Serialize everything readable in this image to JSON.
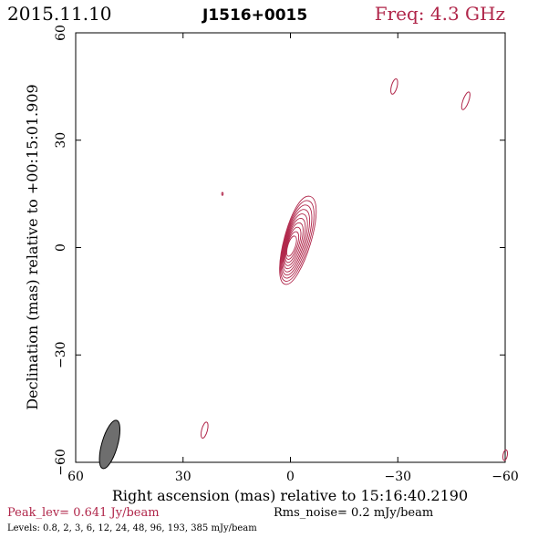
{
  "header": {
    "date": "2015.11.10",
    "source": "J1516+0015",
    "freq": "Freq: 4.3 GHz"
  },
  "footer": {
    "peak": "Peak_lev=  0.641 Jy/beam",
    "rms": "Rms_noise=  0.2 mJy/beam",
    "levels": "Levels: 0.8,   2,   3,   6,  12,  24,  48,  96, 193, 385 mJy/beam"
  },
  "colors": {
    "contour": "#b0264a",
    "header_date": "#000000",
    "header_freq": "#b0264a",
    "peak_text": "#b0264a",
    "beam_fill": "#6e6e6e",
    "axes": "#000000"
  },
  "chart_data": {
    "type": "contour",
    "xlabel": "Right ascension (mas) relative to 15:16:40.2190",
    "ylabel": "Declination (mas) relative to +00:15:01.909",
    "xlim": [
      60,
      -60
    ],
    "ylim": [
      -60,
      60
    ],
    "xticks": [
      60,
      30,
      0,
      -30,
      -60
    ],
    "yticks": [
      60,
      30,
      0,
      -30,
      -60
    ],
    "xtick_labels": [
      "60",
      "30",
      "0",
      "−30",
      "−60"
    ],
    "ytick_labels": [
      "60",
      "30",
      "0",
      "−30",
      "−60"
    ],
    "levels_mJy": [
      0.8,
      2,
      3,
      6,
      12,
      24,
      48,
      96,
      193,
      385
    ],
    "peak_Jy_per_beam": 0.641,
    "rms_mJy_per_beam": 0.2,
    "core": {
      "x": 0,
      "y": 0
    },
    "jet": {
      "x": -5,
      "y": 13
    },
    "beam": {
      "x": 50.5,
      "y": -55,
      "major": 7,
      "minor": 2.2,
      "pa": 16
    },
    "components": [
      {
        "x": -29,
        "y": 45,
        "major": 2.2,
        "minor": 0.8,
        "pa": 15
      },
      {
        "x": -49,
        "y": 41,
        "major": 2.6,
        "minor": 0.8,
        "pa": 20
      },
      {
        "x": 24,
        "y": -51,
        "major": 2.3,
        "minor": 0.8,
        "pa": 15
      },
      {
        "x": -60,
        "y": -58,
        "major": 1.5,
        "minor": 0.6,
        "pa": 10
      },
      {
        "x": 19,
        "y": 15,
        "major": 0.4,
        "minor": 0.2,
        "pa": 0
      }
    ]
  }
}
